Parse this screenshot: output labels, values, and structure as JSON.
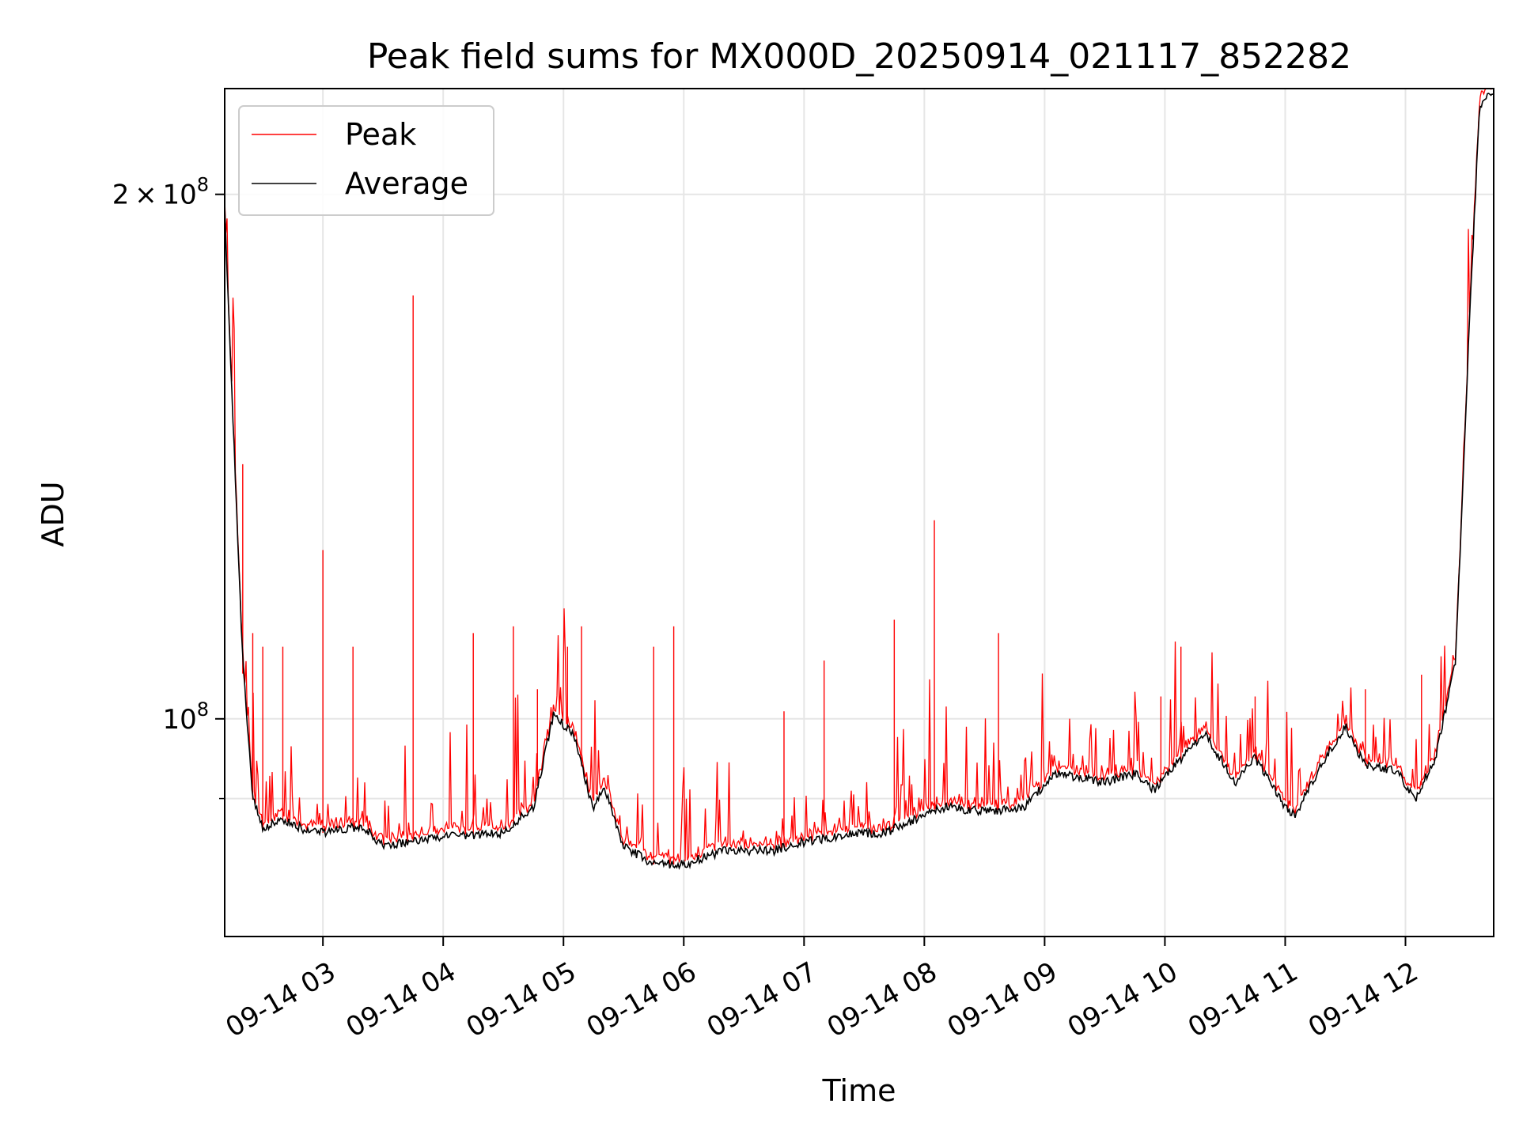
{
  "chart_data": {
    "type": "line",
    "title": "Peak field sums for MX000D_20250914_021117_852282",
    "xlabel": "Time",
    "ylabel": "ADU",
    "x_range": [
      "2025-09-14 02:11",
      "2025-09-14 12:44"
    ],
    "ylim": [
      75000000,
      230000000
    ],
    "yscale": "log",
    "grid": true,
    "legend_position": "upper-left",
    "x_ticks": [
      {
        "time": "2025-09-14 03:00",
        "label": "09-14 03"
      },
      {
        "time": "2025-09-14 04:00",
        "label": "09-14 04"
      },
      {
        "time": "2025-09-14 05:00",
        "label": "09-14 05"
      },
      {
        "time": "2025-09-14 06:00",
        "label": "09-14 06"
      },
      {
        "time": "2025-09-14 07:00",
        "label": "09-14 07"
      },
      {
        "time": "2025-09-14 08:00",
        "label": "09-14 08"
      },
      {
        "time": "2025-09-14 09:00",
        "label": "09-14 09"
      },
      {
        "time": "2025-09-14 10:00",
        "label": "09-14 10"
      },
      {
        "time": "2025-09-14 11:00",
        "label": "09-14 11"
      },
      {
        "time": "2025-09-14 12:00",
        "label": "09-14 12"
      }
    ],
    "y_ticks": [
      {
        "value": 200000000,
        "base": "2 × 10",
        "exp": "8"
      },
      {
        "value": 100000000,
        "base": "10",
        "exp": "8"
      }
    ],
    "y_minor_ticks": [
      90000000
    ],
    "series": [
      {
        "name": "Average",
        "color": "#000000",
        "x": [
          "2025-09-14 02:11",
          "2025-09-14 02:15",
          "2025-09-14 02:20",
          "2025-09-14 02:25",
          "2025-09-14 02:30",
          "2025-09-14 02:40",
          "2025-09-14 02:50",
          "2025-09-14 03:00",
          "2025-09-14 03:20",
          "2025-09-14 03:30",
          "2025-09-14 04:00",
          "2025-09-14 04:30",
          "2025-09-14 04:45",
          "2025-09-14 04:55",
          "2025-09-14 05:05",
          "2025-09-14 05:15",
          "2025-09-14 05:20",
          "2025-09-14 05:30",
          "2025-09-14 05:45",
          "2025-09-14 06:00",
          "2025-09-14 06:20",
          "2025-09-14 06:45",
          "2025-09-14 07:00",
          "2025-09-14 07:25",
          "2025-09-14 07:40",
          "2025-09-14 07:55",
          "2025-09-14 08:10",
          "2025-09-14 08:30",
          "2025-09-14 08:50",
          "2025-09-14 09:05",
          "2025-09-14 09:30",
          "2025-09-14 09:45",
          "2025-09-14 09:55",
          "2025-09-14 10:05",
          "2025-09-14 10:20",
          "2025-09-14 10:35",
          "2025-09-14 10:45",
          "2025-09-14 11:00",
          "2025-09-14 11:05",
          "2025-09-14 11:20",
          "2025-09-14 11:30",
          "2025-09-14 11:40",
          "2025-09-14 11:55",
          "2025-09-14 12:05",
          "2025-09-14 12:15",
          "2025-09-14 12:25",
          "2025-09-14 12:32",
          "2025-09-14 12:37",
          "2025-09-14 12:44"
        ],
        "y": [
          196000000,
          150000000,
          108000000,
          90000000,
          86500000,
          87500000,
          86500000,
          86000000,
          86800000,
          84500000,
          85500000,
          86000000,
          89000000,
          100500000,
          98000000,
          88500000,
          91500000,
          84500000,
          82500000,
          82500000,
          84000000,
          84000000,
          85000000,
          86000000,
          86000000,
          87500000,
          89000000,
          88500000,
          89000000,
          93000000,
          92000000,
          93000000,
          91000000,
          94000000,
          98000000,
          92000000,
          95000000,
          89000000,
          88000000,
          95000000,
          99000000,
          94000000,
          93500000,
          90000000,
          95000000,
          108000000,
          170000000,
          225000000,
          229000000
        ]
      },
      {
        "name": "Peak",
        "color": "#ff0000",
        "spikes": [
          {
            "time": "2025-09-14 02:20",
            "value": 140000000
          },
          {
            "time": "2025-09-14 02:25",
            "value": 112000000
          },
          {
            "time": "2025-09-14 02:30",
            "value": 110000000
          },
          {
            "time": "2025-09-14 02:40",
            "value": 110000000
          },
          {
            "time": "2025-09-14 03:00",
            "value": 125000000
          },
          {
            "time": "2025-09-14 03:15",
            "value": 110000000
          },
          {
            "time": "2025-09-14 03:45",
            "value": 175000000
          },
          {
            "time": "2025-09-14 04:15",
            "value": 112000000
          },
          {
            "time": "2025-09-14 04:35",
            "value": 113000000
          },
          {
            "time": "2025-09-14 04:47",
            "value": 104000000
          },
          {
            "time": "2025-09-14 05:02",
            "value": 110000000
          },
          {
            "time": "2025-09-14 05:09",
            "value": 113000000
          },
          {
            "time": "2025-09-14 05:45",
            "value": 110000000
          },
          {
            "time": "2025-09-14 05:55",
            "value": 113000000
          },
          {
            "time": "2025-09-14 06:50",
            "value": 101000000
          },
          {
            "time": "2025-09-14 07:10",
            "value": 108000000
          },
          {
            "time": "2025-09-14 07:45",
            "value": 114000000
          },
          {
            "time": "2025-09-14 08:05",
            "value": 130000000
          },
          {
            "time": "2025-09-14 08:37",
            "value": 112000000
          },
          {
            "time": "2025-09-14 09:58",
            "value": 103000000
          },
          {
            "time": "2025-09-14 10:08",
            "value": 110000000
          },
          {
            "time": "2025-09-14 10:45",
            "value": 103000000
          },
          {
            "time": "2025-09-14 11:40",
            "value": 104000000
          },
          {
            "time": "2025-09-14 12:08",
            "value": 106000000
          }
        ]
      }
    ]
  }
}
